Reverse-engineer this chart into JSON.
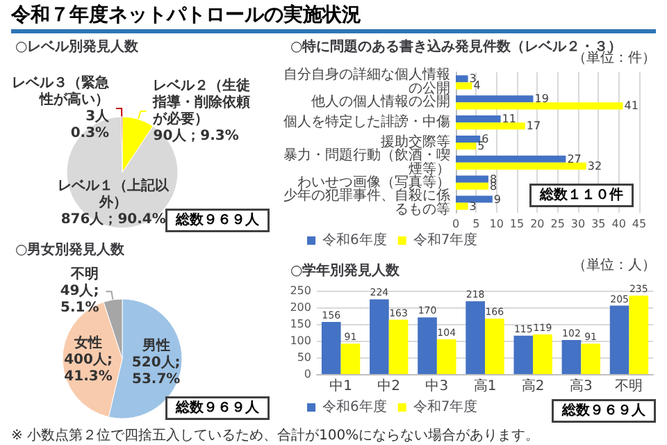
{
  "chart_data": [
    {
      "type": "pie",
      "title": "令和７年度ネットパトロールの実施状況",
      "subtitle": "○レベル別発見人数",
      "categories": [
        "レベル１（上記以外）",
        "レベル２（生徒指導・削除依頼が必要）",
        "レベル３（緊急性が高い）"
      ],
      "values": [
        876,
        90,
        3
      ],
      "colors": [
        "#d9d9d9",
        "#ffff00",
        "#c00000"
      ],
      "value_labels": [
        "876人；90.4%",
        "90人；9.3%",
        "3人\n0.3%"
      ],
      "annotations": [
        "総数９６９人"
      ]
    },
    {
      "type": "bar",
      "orientation": "horizontal",
      "title": "○特に問題のある書き込み発見件数（レベル２・３）",
      "categories": [
        "自分自身の詳細な個人情報の公開",
        "他人の個人情報の公開",
        "個人を特定した誹謗・中傷",
        "援助交際等",
        "暴力・問題行動（飲酒・喫煙等）",
        "わいせつ画像（写真等）",
        "少年の犯罪事件、自殺に係るもの等"
      ],
      "series": [
        {
          "name": "令和6年度",
          "color": "#4472c4",
          "values": [
            3,
            19,
            11,
            6,
            27,
            8,
            9
          ]
        },
        {
          "name": "令和7年度",
          "color": "#ffff00",
          "values": [
            4,
            41,
            17,
            5,
            32,
            8,
            3
          ]
        }
      ],
      "xlim": [
        0,
        45
      ],
      "xticks": [
        0,
        5,
        10,
        15,
        20,
        25,
        30,
        35,
        40,
        45
      ],
      "grid": "x",
      "legend": "bottom left",
      "data_labels": true,
      "annotations": [
        "（単位：件）",
        "総数１１０件"
      ]
    },
    {
      "type": "pie",
      "title": "○男女別発見人数",
      "categories": [
        "男性",
        "女性",
        "不明"
      ],
      "values": [
        520,
        400,
        49
      ],
      "colors": [
        "#9dc3e6",
        "#f8cbad",
        "#a6a6a6"
      ],
      "value_labels": [
        "520人;\n53.7%",
        "400人;\n41.3%",
        "49人;\n5.1%"
      ],
      "annotations": [
        "総数９６９人",
        "※ 小数点第２位で四捨五入しているため、合計が100%にならない場合があります。"
      ]
    },
    {
      "type": "bar",
      "title": "○学年別発見人数",
      "categories": [
        "中1",
        "中2",
        "中3",
        "高1",
        "高2",
        "高3",
        "不明"
      ],
      "series": [
        {
          "name": "令和6年度",
          "color": "#4472c4",
          "values": [
            156,
            224,
            170,
            218,
            115,
            102,
            205
          ]
        },
        {
          "name": "令和7年度",
          "color": "#ffff00",
          "values": [
            91,
            163,
            104,
            166,
            119,
            91,
            235
          ]
        }
      ],
      "ylim": [
        0,
        250
      ],
      "yticks": [
        0,
        50,
        100,
        150,
        200,
        250
      ],
      "grid": "y",
      "legend": "bottom left",
      "data_labels": true,
      "annotations": [
        "（単位：人）",
        "総数９６９人"
      ]
    }
  ]
}
